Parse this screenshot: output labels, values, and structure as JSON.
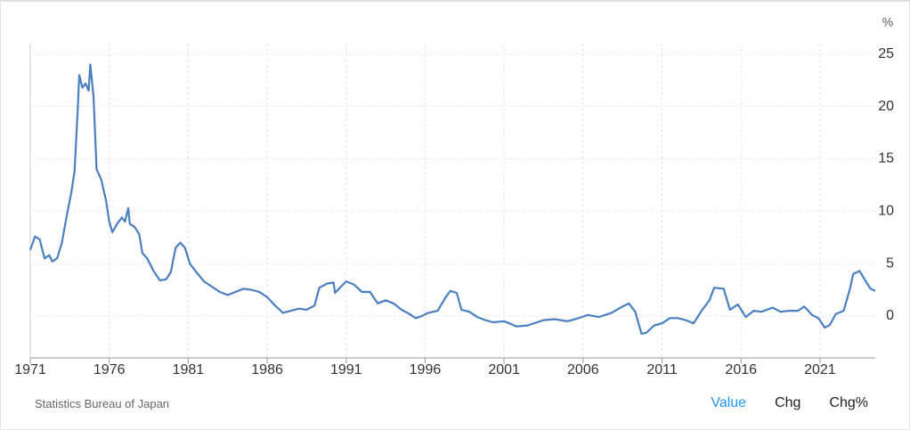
{
  "chart_data": {
    "type": "line",
    "ylabel": "%",
    "series": [
      {
        "name": "Value",
        "color": "#4a7fc1",
        "x": [
          1971.0,
          1971.3,
          1971.6,
          1971.9,
          1972.2,
          1972.4,
          1972.7,
          1973.0,
          1973.3,
          1973.6,
          1973.8,
          1974.0,
          1974.1,
          1974.3,
          1974.5,
          1974.7,
          1974.8,
          1975.0,
          1975.2,
          1975.5,
          1975.8,
          1976.0,
          1976.2,
          1976.5,
          1976.8,
          1977.0,
          1977.2,
          1977.3,
          1977.6,
          1977.9,
          1978.1,
          1978.4,
          1978.8,
          1979.2,
          1979.6,
          1979.9,
          1980.2,
          1980.5,
          1980.8,
          1981.1,
          1981.5,
          1982.0,
          1982.5,
          1983.0,
          1983.5,
          1984.0,
          1984.5,
          1985.0,
          1985.5,
          1986.0,
          1986.5,
          1987.0,
          1987.5,
          1988.0,
          1988.5,
          1989.0,
          1989.3,
          1989.8,
          1990.2,
          1990.3,
          1990.6,
          1991.0,
          1991.5,
          1992.0,
          1992.5,
          1993.0,
          1993.5,
          1994.0,
          1994.5,
          1995.0,
          1995.4,
          1995.8,
          1996.2,
          1996.8,
          1997.3,
          1997.6,
          1998.0,
          1998.3,
          1998.8,
          1999.3,
          1999.8,
          2000.3,
          2001.0,
          2001.8,
          2002.5,
          2003.5,
          2004.2,
          2005.0,
          2005.5,
          2006.3,
          2007.0,
          2007.8,
          2008.5,
          2008.9,
          2009.3,
          2009.7,
          2010.0,
          2010.5,
          2011.0,
          2011.5,
          2012.0,
          2012.5,
          2013.0,
          2013.5,
          2014.0,
          2014.3,
          2014.9,
          2015.3,
          2015.8,
          2016.3,
          2016.8,
          2017.3,
          2018.0,
          2018.5,
          2019.0,
          2019.6,
          2020.0,
          2020.5,
          2020.9,
          2021.3,
          2021.6,
          2022.0,
          2022.5,
          2022.9,
          2023.1,
          2023.5,
          2023.9,
          2024.2,
          2024.5
        ],
        "values": [
          6.3,
          7.6,
          7.3,
          5.5,
          5.8,
          5.2,
          5.5,
          7.0,
          9.5,
          11.8,
          13.8,
          19.5,
          23.0,
          21.8,
          22.2,
          21.5,
          24.0,
          21.0,
          14.0,
          13.0,
          11.0,
          9.0,
          8.0,
          8.8,
          9.4,
          9.0,
          10.3,
          8.8,
          8.5,
          7.8,
          6.0,
          5.5,
          4.3,
          3.4,
          3.5,
          4.2,
          6.5,
          7.0,
          6.5,
          5.0,
          4.2,
          3.3,
          2.8,
          2.3,
          2.0,
          2.3,
          2.6,
          2.5,
          2.3,
          1.8,
          1.0,
          0.3,
          0.5,
          0.7,
          0.6,
          1.0,
          2.7,
          3.1,
          3.2,
          2.2,
          2.7,
          3.3,
          3.0,
          2.3,
          2.3,
          1.2,
          1.5,
          1.2,
          0.6,
          0.2,
          -0.2,
          0.0,
          0.3,
          0.5,
          1.8,
          2.4,
          2.2,
          0.6,
          0.4,
          -0.1,
          -0.4,
          -0.6,
          -0.5,
          -1.0,
          -0.9,
          -0.4,
          -0.3,
          -0.5,
          -0.3,
          0.1,
          -0.1,
          0.3,
          0.9,
          1.2,
          0.4,
          -1.7,
          -1.6,
          -0.9,
          -0.7,
          -0.2,
          -0.2,
          -0.4,
          -0.7,
          0.5,
          1.5,
          2.7,
          2.6,
          0.6,
          1.1,
          -0.1,
          0.5,
          0.4,
          0.8,
          0.4,
          0.5,
          0.5,
          0.9,
          0.1,
          -0.2,
          -1.1,
          -0.9,
          0.2,
          0.5,
          2.6,
          4.0,
          4.3,
          3.3,
          2.6,
          2.4
        ],
        "axis": "y"
      }
    ],
    "xlim": [
      1971,
      2024.5
    ],
    "xticks": [
      1971,
      1976,
      1981,
      1986,
      1991,
      1996,
      2001,
      2006,
      2011,
      2016,
      2021
    ],
    "ylim": [
      -4,
      26
    ],
    "yticks": [
      0,
      5,
      10,
      15,
      20,
      25
    ],
    "grid": true
  },
  "footer": {
    "source": "Statistics Bureau of Japan",
    "tabs": [
      "Value",
      "Chg",
      "Chg%"
    ]
  }
}
